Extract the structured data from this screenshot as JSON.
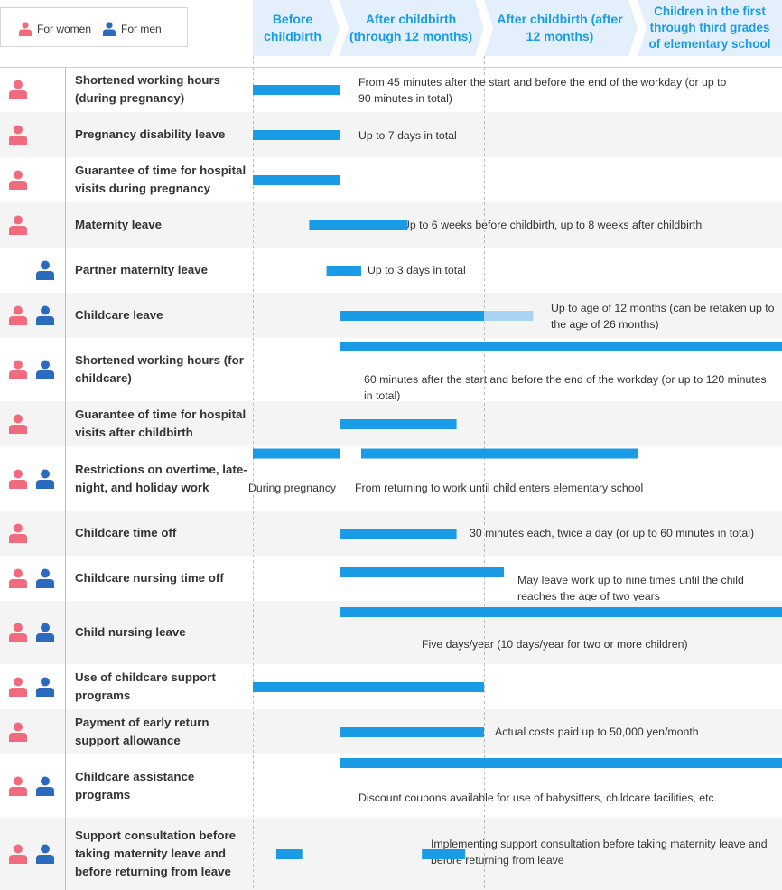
{
  "legend": {
    "women": "For women",
    "men": "For men"
  },
  "colors": {
    "bar": "#1a9be6",
    "bar_light": "#a9d3f0",
    "phase_header": "#e3f0fb",
    "phase_text": "#1a9be6",
    "woman_icon": "#ef6b7d",
    "man_icon": "#2a6bbd",
    "row_alt": "#f4f4f4",
    "grid": "#bdbdbd"
  },
  "chart_data": {
    "type": "gantt",
    "phases": [
      {
        "name": "Before childbirth"
      },
      {
        "name": "After childbirth (through 12 months)"
      },
      {
        "name": "After childbirth (after 12 months)"
      },
      {
        "name": "Children in the first through third grades of elementary school"
      }
    ],
    "rows": [
      {
        "label": "Shortened working hours (during pregnancy)",
        "women": true,
        "men": false,
        "bars": [
          {
            "start": 0.0,
            "end": 1.0,
            "style": "solid"
          }
        ],
        "notes": [
          "From 45 minutes after the start and before the end of the workday (or up to 90 minutes in total)"
        ]
      },
      {
        "label": "Pregnancy disability leave",
        "women": true,
        "men": false,
        "bars": [
          {
            "start": 0.0,
            "end": 1.0,
            "style": "solid"
          }
        ],
        "notes": [
          "Up to 7 days in total"
        ]
      },
      {
        "label": "Guarantee of time for hospital visits during pregnancy",
        "women": true,
        "men": false,
        "bars": [
          {
            "start": 0.0,
            "end": 1.0,
            "style": "solid"
          }
        ],
        "notes": []
      },
      {
        "label": "Maternity leave",
        "women": true,
        "men": false,
        "bars": [
          {
            "start": 0.65,
            "end": 1.47,
            "style": "solid"
          }
        ],
        "notes": [
          "Up to 6 weeks before childbirth, up to 8 weeks after childbirth"
        ]
      },
      {
        "label": "Partner maternity leave",
        "women": false,
        "men": true,
        "bars": [
          {
            "start": 0.85,
            "end": 1.15,
            "style": "solid"
          }
        ],
        "notes": [
          "Up to 3 days in total"
        ]
      },
      {
        "label": "Childcare leave",
        "women": true,
        "men": true,
        "bars": [
          {
            "start": 1.0,
            "end": 2.0,
            "style": "solid"
          },
          {
            "start": 2.0,
            "end": 2.32,
            "style": "light"
          }
        ],
        "notes": [
          "Up to age of 12 months (can be retaken up to the age of 26 months)"
        ]
      },
      {
        "label": "Shortened working hours (for childcare)",
        "women": true,
        "men": true,
        "bars": [
          {
            "start": 1.0,
            "end": 4.0,
            "style": "solid"
          }
        ],
        "notes": [
          "60 minutes after the start and before the end of the workday (or up to 120 minutes in total)"
        ]
      },
      {
        "label": "Guarantee of time for hospital visits after childbirth",
        "women": true,
        "men": false,
        "bars": [
          {
            "start": 1.0,
            "end": 1.81,
            "style": "solid"
          }
        ],
        "notes": []
      },
      {
        "label": "Restrictions on overtime, late-night, and holiday work",
        "women": true,
        "men": true,
        "bars": [
          {
            "start": 0.0,
            "end": 1.0,
            "style": "solid"
          },
          {
            "start": 1.15,
            "end": 3.0,
            "style": "solid"
          }
        ],
        "notes": [
          "During pregnancy",
          "From returning to work until child enters elementary school"
        ]
      },
      {
        "label": "Childcare time off",
        "women": true,
        "men": false,
        "bars": [
          {
            "start": 1.0,
            "end": 1.81,
            "style": "solid"
          }
        ],
        "notes": [
          "30 minutes each, twice a day (or up to 60 minutes in total)"
        ]
      },
      {
        "label": "Childcare nursing time off",
        "women": true,
        "men": true,
        "bars": [
          {
            "start": 1.0,
            "end": 2.13,
            "style": "solid"
          }
        ],
        "notes": [
          "May leave work up to nine times until the child reaches the age of two years"
        ]
      },
      {
        "label": "Child nursing leave",
        "women": true,
        "men": true,
        "bars": [
          {
            "start": 1.0,
            "end": 4.0,
            "style": "solid"
          }
        ],
        "notes": [
          "Five days/year (10 days/year for two or more children)"
        ]
      },
      {
        "label": "Use of childcare support programs",
        "women": true,
        "men": true,
        "bars": [
          {
            "start": 0.0,
            "end": 2.0,
            "style": "solid"
          }
        ],
        "notes": []
      },
      {
        "label": "Payment of early return support allowance",
        "women": true,
        "men": false,
        "bars": [
          {
            "start": 1.0,
            "end": 2.0,
            "style": "solid"
          }
        ],
        "notes": [
          "Actual costs paid up to 50,000 yen/month"
        ]
      },
      {
        "label": "Childcare assistance programs",
        "women": true,
        "men": true,
        "bars": [
          {
            "start": 1.0,
            "end": 4.0,
            "style": "solid"
          }
        ],
        "notes": [
          "Discount coupons available for use of babysitters, childcare facilities, etc."
        ]
      },
      {
        "label": "Support consultation before taking maternity leave and before returning from leave",
        "women": true,
        "men": true,
        "bars": [
          {
            "start": 0.27,
            "end": 0.57,
            "style": "solid"
          },
          {
            "start": 1.57,
            "end": 1.87,
            "style": "solid"
          }
        ],
        "notes": [
          "Implementing support consultation before taking maternity leave and before returning from leave"
        ]
      }
    ]
  }
}
